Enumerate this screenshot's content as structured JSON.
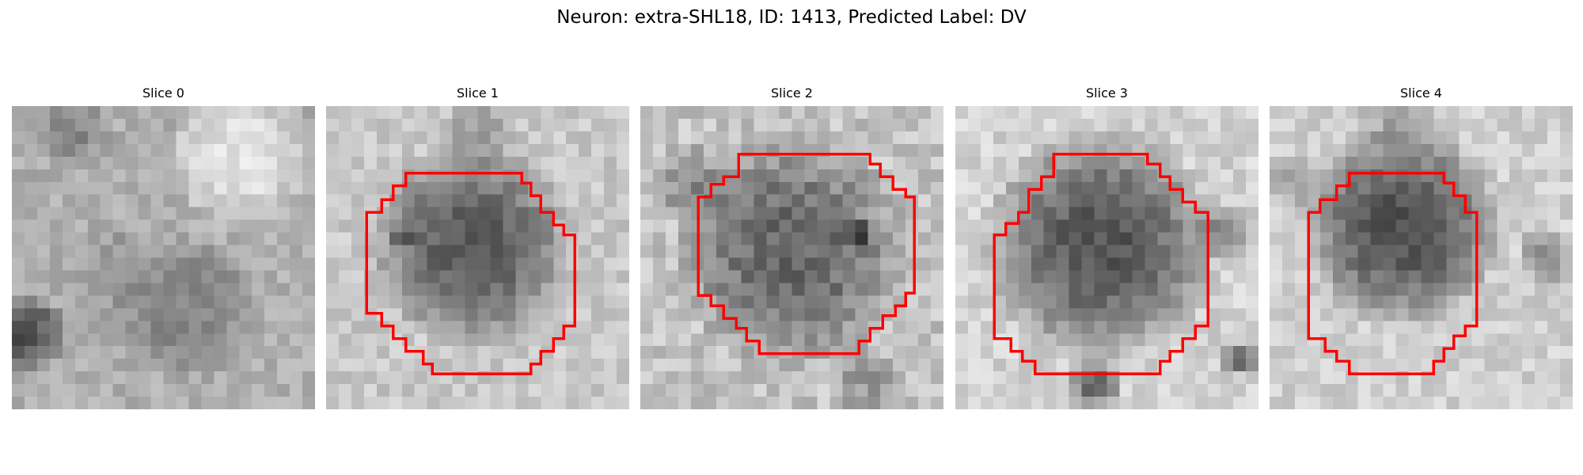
{
  "title": "Neuron: extra-SHL18, ID: 1413, Predicted Label: DV",
  "panels": [
    {
      "label": "Slice 0",
      "has_outline": false
    },
    {
      "label": "Slice 1",
      "has_outline": true
    },
    {
      "label": "Slice 2",
      "has_outline": true
    },
    {
      "label": "Slice 3",
      "has_outline": true
    },
    {
      "label": "Slice 4",
      "has_outline": true
    }
  ],
  "colors": {
    "outline": "#ff0000",
    "background": "#ffffff"
  }
}
